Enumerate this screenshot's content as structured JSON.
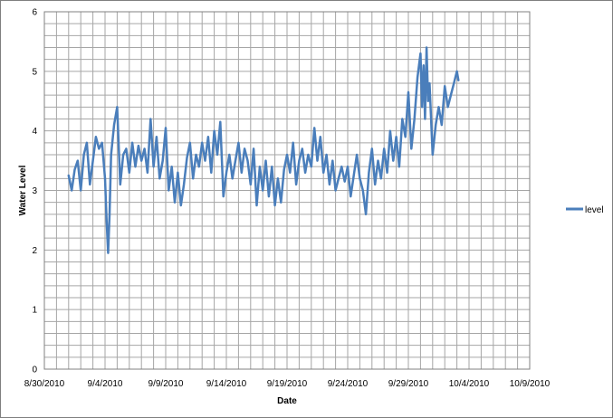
{
  "chart_data": {
    "type": "line",
    "xlabel": "Date",
    "ylabel": "Water Level",
    "xlim": [
      "2010-08-30",
      "2010-10-09"
    ],
    "ylim": [
      0,
      6
    ],
    "x_tick_labels": [
      "8/30/2010",
      "9/4/2010",
      "9/9/2010",
      "9/14/2010",
      "9/19/2010",
      "9/24/2010",
      "9/29/2010",
      "10/4/2010",
      "10/9/2010"
    ],
    "y_tick_labels": [
      "0",
      "1",
      "2",
      "3",
      "4",
      "5",
      "6"
    ],
    "grid": true,
    "legend_position": "right",
    "series": [
      {
        "name": "level",
        "color": "#4a7ebb",
        "points": [
          [
            "2010-09-01 00:00",
            3.25
          ],
          [
            "2010-09-01 06:00",
            3.0
          ],
          [
            "2010-09-01 12:00",
            3.35
          ],
          [
            "2010-09-01 18:00",
            3.5
          ],
          [
            "2010-09-02 00:00",
            3.0
          ],
          [
            "2010-09-02 06:00",
            3.6
          ],
          [
            "2010-09-02 12:00",
            3.8
          ],
          [
            "2010-09-02 18:00",
            3.1
          ],
          [
            "2010-09-03 00:00",
            3.5
          ],
          [
            "2010-09-03 06:00",
            3.9
          ],
          [
            "2010-09-03 12:00",
            3.7
          ],
          [
            "2010-09-03 18:00",
            3.8
          ],
          [
            "2010-09-04 00:00",
            3.2
          ],
          [
            "2010-09-04 03:00",
            2.5
          ],
          [
            "2010-09-04 06:00",
            1.95
          ],
          [
            "2010-09-04 09:00",
            2.6
          ],
          [
            "2010-09-04 12:00",
            3.6
          ],
          [
            "2010-09-04 18:00",
            4.1
          ],
          [
            "2010-09-05 00:00",
            4.4
          ],
          [
            "2010-09-05 06:00",
            3.1
          ],
          [
            "2010-09-05 12:00",
            3.6
          ],
          [
            "2010-09-05 18:00",
            3.7
          ],
          [
            "2010-09-06 00:00",
            3.3
          ],
          [
            "2010-09-06 06:00",
            3.8
          ],
          [
            "2010-09-06 12:00",
            3.4
          ],
          [
            "2010-09-06 18:00",
            3.75
          ],
          [
            "2010-09-07 00:00",
            3.5
          ],
          [
            "2010-09-07 06:00",
            3.7
          ],
          [
            "2010-09-07 12:00",
            3.3
          ],
          [
            "2010-09-07 18:00",
            4.2
          ],
          [
            "2010-09-08 00:00",
            3.4
          ],
          [
            "2010-09-08 06:00",
            3.9
          ],
          [
            "2010-09-08 12:00",
            3.2
          ],
          [
            "2010-09-08 18:00",
            3.5
          ],
          [
            "2010-09-09 00:00",
            4.05
          ],
          [
            "2010-09-09 06:00",
            3.0
          ],
          [
            "2010-09-09 12:00",
            3.4
          ],
          [
            "2010-09-09 18:00",
            2.8
          ],
          [
            "2010-09-10 00:00",
            3.3
          ],
          [
            "2010-09-10 06:00",
            2.75
          ],
          [
            "2010-09-10 12:00",
            3.1
          ],
          [
            "2010-09-10 18:00",
            3.55
          ],
          [
            "2010-09-11 00:00",
            3.8
          ],
          [
            "2010-09-11 06:00",
            3.2
          ],
          [
            "2010-09-11 12:00",
            3.6
          ],
          [
            "2010-09-11 18:00",
            3.4
          ],
          [
            "2010-09-12 00:00",
            3.8
          ],
          [
            "2010-09-12 06:00",
            3.5
          ],
          [
            "2010-09-12 12:00",
            3.9
          ],
          [
            "2010-09-12 18:00",
            3.3
          ],
          [
            "2010-09-13 00:00",
            4.0
          ],
          [
            "2010-09-13 06:00",
            3.6
          ],
          [
            "2010-09-13 12:00",
            4.15
          ],
          [
            "2010-09-13 18:00",
            2.9
          ],
          [
            "2010-09-14 00:00",
            3.3
          ],
          [
            "2010-09-14 06:00",
            3.6
          ],
          [
            "2010-09-14 12:00",
            3.2
          ],
          [
            "2010-09-14 18:00",
            3.5
          ],
          [
            "2010-09-15 00:00",
            3.8
          ],
          [
            "2010-09-15 06:00",
            3.3
          ],
          [
            "2010-09-15 12:00",
            3.7
          ],
          [
            "2010-09-15 18:00",
            3.5
          ],
          [
            "2010-09-16 00:00",
            3.1
          ],
          [
            "2010-09-16 06:00",
            3.7
          ],
          [
            "2010-09-16 12:00",
            2.75
          ],
          [
            "2010-09-16 18:00",
            3.4
          ],
          [
            "2010-09-17 00:00",
            3.0
          ],
          [
            "2010-09-17 06:00",
            3.5
          ],
          [
            "2010-09-17 12:00",
            2.9
          ],
          [
            "2010-09-17 18:00",
            3.4
          ],
          [
            "2010-09-18 00:00",
            2.75
          ],
          [
            "2010-09-18 06:00",
            3.2
          ],
          [
            "2010-09-18 12:00",
            2.8
          ],
          [
            "2010-09-18 18:00",
            3.35
          ],
          [
            "2010-09-19 00:00",
            3.6
          ],
          [
            "2010-09-19 06:00",
            3.3
          ],
          [
            "2010-09-19 12:00",
            3.8
          ],
          [
            "2010-09-19 18:00",
            3.1
          ],
          [
            "2010-09-20 00:00",
            3.5
          ],
          [
            "2010-09-20 06:00",
            3.7
          ],
          [
            "2010-09-20 12:00",
            3.3
          ],
          [
            "2010-09-20 18:00",
            3.6
          ],
          [
            "2010-09-21 00:00",
            3.4
          ],
          [
            "2010-09-21 06:00",
            4.05
          ],
          [
            "2010-09-21 12:00",
            3.5
          ],
          [
            "2010-09-21 18:00",
            3.9
          ],
          [
            "2010-09-22 00:00",
            3.3
          ],
          [
            "2010-09-22 06:00",
            3.6
          ],
          [
            "2010-09-22 12:00",
            3.1
          ],
          [
            "2010-09-22 18:00",
            3.5
          ],
          [
            "2010-09-23 00:00",
            3.0
          ],
          [
            "2010-09-23 06:00",
            3.2
          ],
          [
            "2010-09-23 12:00",
            3.4
          ],
          [
            "2010-09-23 18:00",
            3.15
          ],
          [
            "2010-09-24 00:00",
            3.4
          ],
          [
            "2010-09-24 06:00",
            2.9
          ],
          [
            "2010-09-24 12:00",
            3.25
          ],
          [
            "2010-09-24 18:00",
            3.6
          ],
          [
            "2010-09-25 00:00",
            3.2
          ],
          [
            "2010-09-25 06:00",
            3.0
          ],
          [
            "2010-09-25 12:00",
            2.6
          ],
          [
            "2010-09-25 18:00",
            3.3
          ],
          [
            "2010-09-26 00:00",
            3.7
          ],
          [
            "2010-09-26 06:00",
            3.1
          ],
          [
            "2010-09-26 12:00",
            3.5
          ],
          [
            "2010-09-26 18:00",
            3.2
          ],
          [
            "2010-09-27 00:00",
            3.7
          ],
          [
            "2010-09-27 06:00",
            3.3
          ],
          [
            "2010-09-27 12:00",
            4.0
          ],
          [
            "2010-09-27 18:00",
            3.5
          ],
          [
            "2010-09-28 00:00",
            3.9
          ],
          [
            "2010-09-28 06:00",
            3.4
          ],
          [
            "2010-09-28 12:00",
            4.2
          ],
          [
            "2010-09-28 18:00",
            3.9
          ],
          [
            "2010-09-29 00:00",
            4.65
          ],
          [
            "2010-09-29 06:00",
            3.7
          ],
          [
            "2010-09-29 12:00",
            4.2
          ],
          [
            "2010-09-29 18:00",
            4.9
          ],
          [
            "2010-09-30 00:00",
            5.3
          ],
          [
            "2010-09-30 03:00",
            4.4
          ],
          [
            "2010-09-30 06:00",
            5.1
          ],
          [
            "2010-09-30 09:00",
            4.2
          ],
          [
            "2010-09-30 12:00",
            5.4
          ],
          [
            "2010-09-30 15:00",
            4.5
          ],
          [
            "2010-09-30 18:00",
            4.8
          ],
          [
            "2010-10-01 00:00",
            3.6
          ],
          [
            "2010-10-01 06:00",
            4.1
          ],
          [
            "2010-10-01 12:00",
            4.4
          ],
          [
            "2010-10-01 18:00",
            4.1
          ],
          [
            "2010-10-02 00:00",
            4.75
          ],
          [
            "2010-10-02 06:00",
            4.4
          ],
          [
            "2010-10-02 12:00",
            4.6
          ],
          [
            "2010-10-02 18:00",
            4.8
          ],
          [
            "2010-10-03 00:00",
            5.0
          ],
          [
            "2010-10-03 03:00",
            4.85
          ]
        ]
      }
    ]
  }
}
